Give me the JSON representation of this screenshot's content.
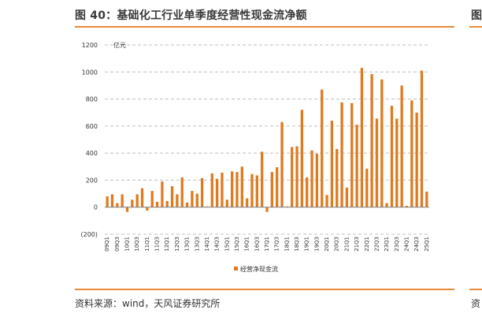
{
  "figure": {
    "title": "图 40：基础化工行业单季度经营性现金流净额",
    "source": "资料来源：wind，天风证券研究所",
    "next_figure_title": "图",
    "next_figure_source": "资"
  },
  "colors": {
    "bar": "#E07A1F",
    "accent_rule": "#E88A3A",
    "grid": "#BFBFBF",
    "negative_label": "#FF0000"
  },
  "chart_data": {
    "type": "bar",
    "title": "基础化工行业单季度经营性现金流净额",
    "ylabel": "亿元",
    "xlabel": "",
    "ylim": [
      -200,
      1200
    ],
    "yticks": [
      1200,
      1000,
      800,
      600,
      400,
      200,
      0,
      -200
    ],
    "ytick_labels": [
      "1200",
      "1000",
      "800",
      "600",
      "400",
      "200",
      "0",
      "(200)"
    ],
    "grid": true,
    "legend": {
      "position": "bottom-center",
      "entries": [
        "经营净现金流"
      ]
    },
    "series": [
      {
        "name": "经营净现金流",
        "values": [
          80,
          95,
          30,
          95,
          -35,
          55,
          95,
          140,
          -25,
          120,
          40,
          190,
          45,
          155,
          95,
          220,
          35,
          120,
          100,
          215,
          5,
          250,
          210,
          255,
          55,
          265,
          260,
          300,
          65,
          245,
          235,
          410,
          -35,
          260,
          295,
          630,
          5,
          445,
          450,
          720,
          220,
          420,
          395,
          870,
          90,
          640,
          430,
          775,
          145,
          770,
          610,
          1030,
          285,
          985,
          655,
          945,
          30,
          750,
          655,
          900,
          10,
          790,
          700,
          1010,
          115
        ]
      }
    ],
    "categories": [
      "09Q1",
      "09Q2",
      "09Q3",
      "09Q4",
      "10Q1",
      "10Q2",
      "10Q3",
      "10Q4",
      "11Q1",
      "11Q2",
      "11Q3",
      "11Q4",
      "12Q1",
      "12Q2",
      "12Q3",
      "12Q4",
      "13Q1",
      "13Q2",
      "13Q3",
      "13Q4",
      "14Q1",
      "14Q2",
      "14Q3",
      "14Q4",
      "15Q1",
      "15Q2",
      "15Q3",
      "15Q4",
      "16Q1",
      "16Q2",
      "16Q3",
      "16Q4",
      "17Q1",
      "17Q2",
      "17Q3",
      "17Q4",
      "18Q1",
      "18Q2",
      "18Q3",
      "18Q4",
      "19Q1",
      "19Q2",
      "19Q3",
      "19Q4",
      "20Q1",
      "20Q2",
      "20Q3",
      "20Q4",
      "21Q1",
      "21Q2",
      "21Q3",
      "21Q4",
      "22Q1",
      "22Q2",
      "22Q3",
      "22Q4",
      "23Q1",
      "23Q2",
      "23Q3",
      "23Q4",
      "24Q1",
      "24Q2",
      "24Q3",
      "24Q4",
      "25Q1"
    ],
    "tick_labels": [
      "09Q1",
      "09Q3",
      "10Q1",
      "10Q3",
      "11Q1",
      "11Q3",
      "12Q1",
      "12Q3",
      "13Q1",
      "13Q3",
      "14Q1",
      "14Q3",
      "15Q1",
      "15Q3",
      "16Q1",
      "16Q3",
      "17Q1",
      "17Q3",
      "18Q1",
      "18Q3",
      "19Q1",
      "19Q3",
      "20Q1",
      "20Q3",
      "21Q1",
      "21Q3",
      "22Q1",
      "22Q3",
      "23Q1",
      "23Q3",
      "24Q1",
      "24Q3",
      "25Q1"
    ]
  }
}
